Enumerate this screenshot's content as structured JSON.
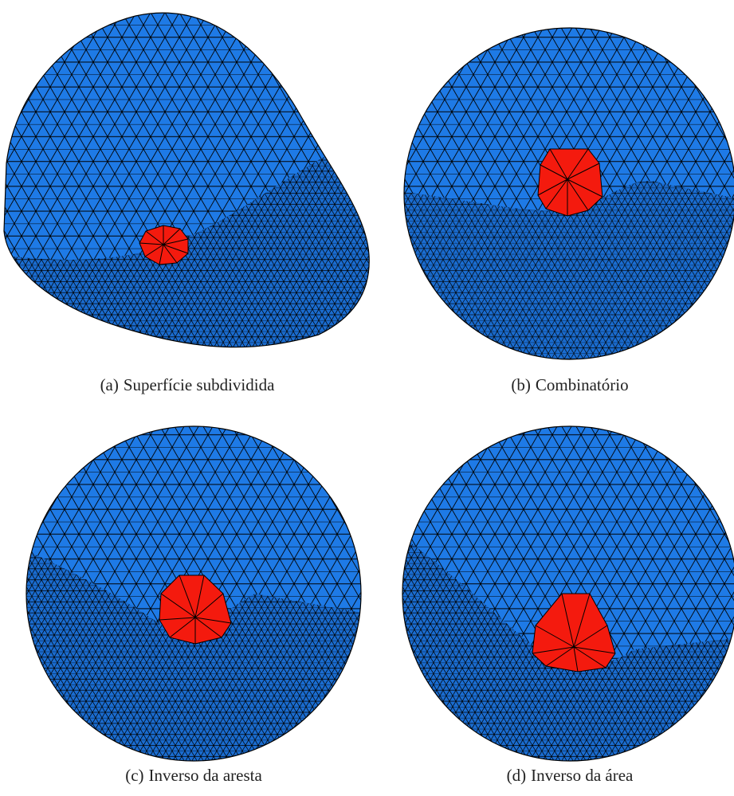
{
  "panels": [
    {
      "label": "(a)",
      "caption": "Superfície subdividida"
    },
    {
      "label": "(b)",
      "caption": "Combinatório"
    },
    {
      "label": "(c)",
      "caption": "Inverso da aresta"
    },
    {
      "label": "(d)",
      "caption": "Inverso da área"
    }
  ]
}
